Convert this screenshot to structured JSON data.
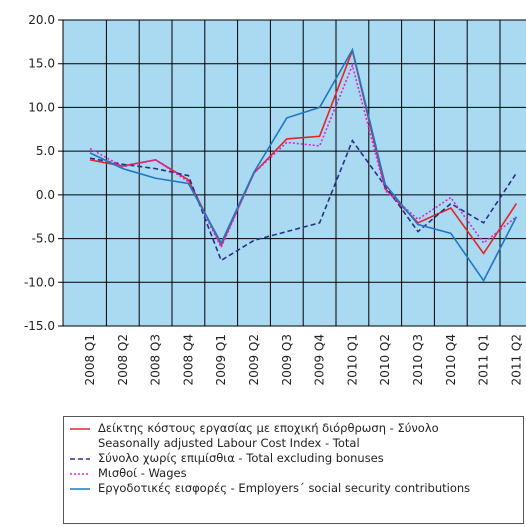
{
  "chart_data": {
    "type": "line",
    "categories": [
      "2008 Q1",
      "2008 Q2",
      "2008 Q3",
      "2008 Q4",
      "2009 Q1",
      "2009 Q2",
      "2009 Q3",
      "2009 Q4",
      "2010 Q1",
      "2010 Q2",
      "2010 Q3",
      "2010 Q4",
      "2011 Q1",
      "2011 Q2"
    ],
    "series": [
      {
        "name": "Δείκτης κόστους εργασίας με εποχική διόρθρωση - Σύνολο\nSeasonally adjusted Labour Cost Index - Total",
        "color": "#e3242b",
        "dash": "solid",
        "values": [
          4.0,
          3.3,
          4.0,
          1.7,
          -5.8,
          2.5,
          6.4,
          6.7,
          16.5,
          0.7,
          -3.2,
          -1.5,
          -6.7,
          -1.0
        ]
      },
      {
        "name": "Σύνολο χωρίς επιμίσθια - Total excluding bonuses",
        "color": "#2b2f8c",
        "dash": "dashed",
        "values": [
          4.2,
          3.5,
          3.0,
          2.2,
          -7.5,
          -5.2,
          -4.2,
          -3.2,
          6.2,
          1.0,
          -4.2,
          -1.0,
          -3.2,
          2.5
        ]
      },
      {
        "name": "Μισθοί - Wages",
        "color": "#d62ad0",
        "dash": "dotted",
        "values": [
          5.3,
          3.2,
          4.0,
          1.5,
          -6.0,
          2.5,
          6.0,
          5.6,
          14.8,
          0.5,
          -2.8,
          -0.3,
          -5.5,
          -2.5
        ]
      },
      {
        "name": "Εργοδοτικές εισφορές - Employers΄ social security contributions",
        "color": "#1f78c1",
        "dash": "solid",
        "values": [
          4.8,
          3.0,
          1.9,
          1.3,
          -5.5,
          2.6,
          8.8,
          10.0,
          16.6,
          1.2,
          -3.4,
          -4.4,
          -9.8,
          -2.5
        ]
      }
    ],
    "ylim": [
      -15,
      20
    ],
    "yticks": [
      {
        "value": -15,
        "label": "-15.0"
      },
      {
        "value": -10,
        "label": "-10.0"
      },
      {
        "value": -5,
        "label": "-5.0"
      },
      {
        "value": 0,
        "label": "0.0"
      },
      {
        "value": 5,
        "label": "5.0"
      },
      {
        "value": 10,
        "label": "10.0"
      },
      {
        "value": 15,
        "label": "15.0"
      },
      {
        "value": 20,
        "label": "20.0"
      }
    ],
    "grid": true,
    "background": "#a9daf2"
  }
}
